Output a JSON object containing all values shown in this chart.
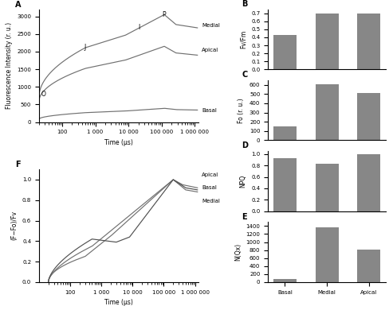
{
  "bar_categories": [
    "Basal",
    "Medial",
    "Apical"
  ],
  "bar_color": "#878787",
  "B_values": [
    0.43,
    0.7,
    0.7
  ],
  "B_ylabel": "Fv/Fm",
  "B_ylim": [
    0.0,
    0.75
  ],
  "B_yticks": [
    0.0,
    0.1,
    0.2,
    0.3,
    0.4,
    0.5,
    0.6,
    0.7
  ],
  "C_values": [
    150,
    610,
    515
  ],
  "C_ylabel": "Fo (r. u.)",
  "C_ylim": [
    0,
    650
  ],
  "C_yticks": [
    0,
    100,
    200,
    300,
    400,
    500,
    600
  ],
  "D_values": [
    0.93,
    0.83,
    1.0
  ],
  "D_ylabel": "NPQ",
  "D_ylim": [
    0.0,
    1.05
  ],
  "D_yticks": [
    0.0,
    0.2,
    0.4,
    0.6,
    0.8,
    1.0
  ],
  "E_values": [
    80,
    1360,
    820
  ],
  "E_ylabel": "N(Qx)",
  "E_ylim": [
    0,
    1500
  ],
  "E_yticks": [
    0,
    200,
    400,
    600,
    800,
    1000,
    1200,
    1400
  ],
  "line_color": "#707070",
  "line_color2": "#505050",
  "Fo_med": 700,
  "Fm_med": 3050,
  "Fo_api": 580,
  "Fm_api": 2150,
  "Fo_bas": 80,
  "Fm_bas": 390,
  "A_ylim": [
    0,
    3200
  ],
  "A_yticks": [
    0,
    500,
    1000,
    1500,
    2000,
    2500,
    3000
  ],
  "F_ylim": [
    0.0,
    1.1
  ],
  "F_yticks": [
    0.0,
    0.2,
    0.4,
    0.6,
    0.8,
    1.0
  ],
  "xticks_A": [
    100,
    1000,
    10000,
    100000,
    1000000
  ],
  "xtick_labels_A": [
    "100",
    "1 000",
    "10 000",
    "100 000",
    "1 000 000"
  ]
}
